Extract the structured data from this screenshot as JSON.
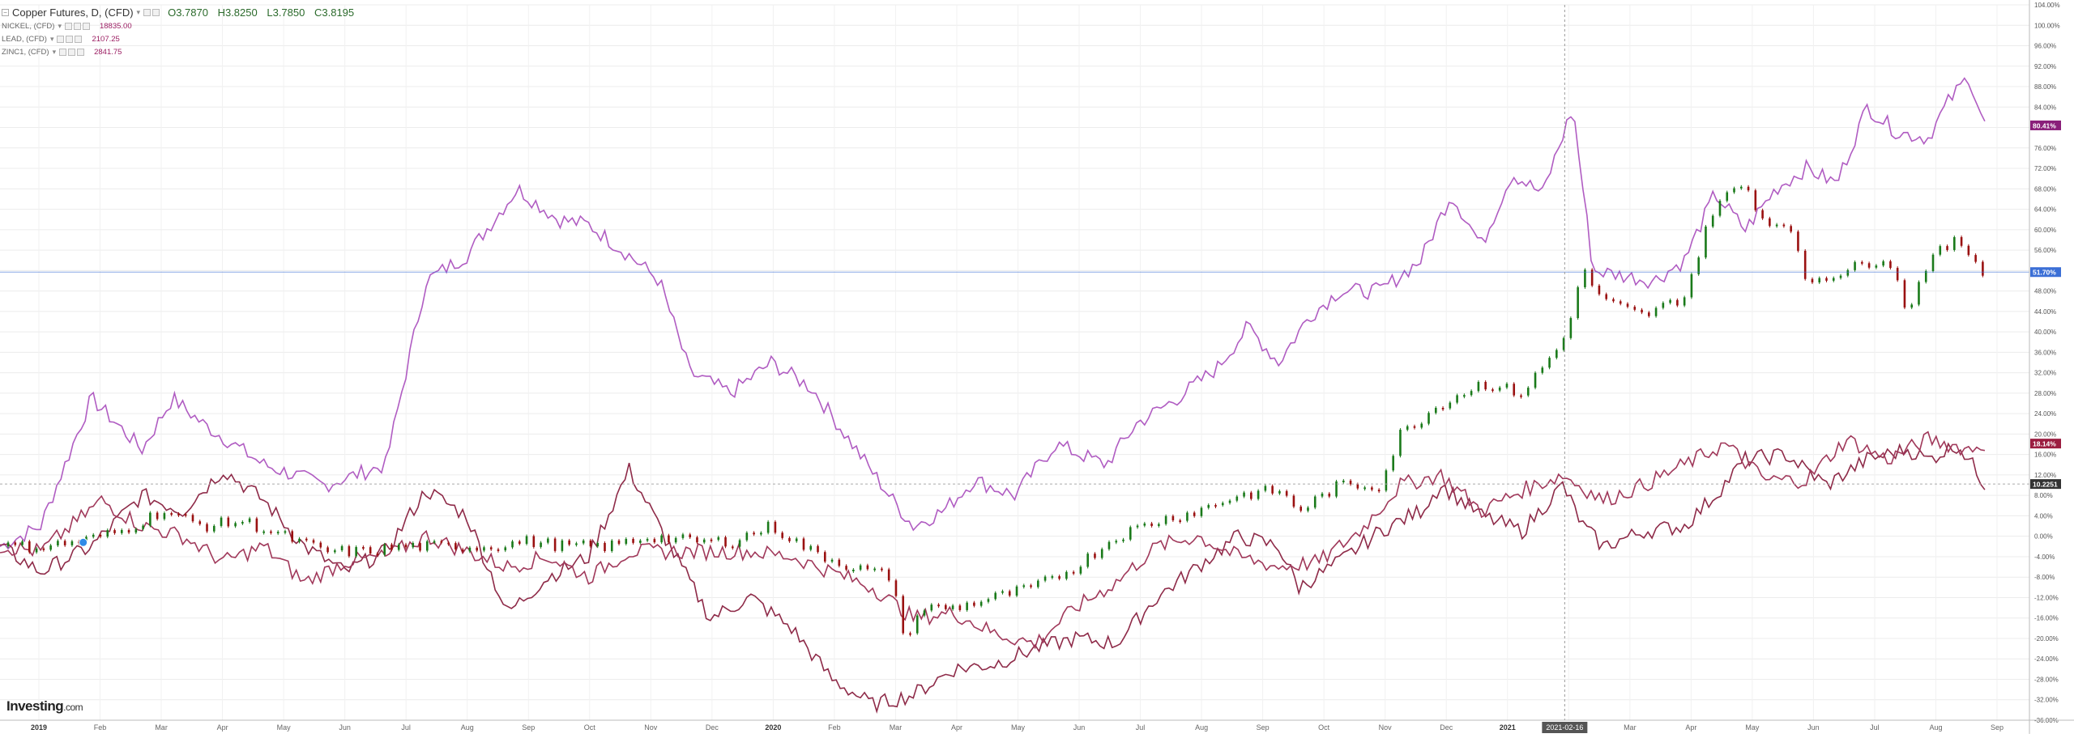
{
  "legend": {
    "main_title": "Copper Futures, D, (CFD)",
    "open": "O3.7870",
    "high": "H3.8250",
    "low": "L3.7850",
    "close": "C3.8195",
    "symbols": [
      {
        "name": "NICKEL, (CFD)",
        "value": "18835.00"
      },
      {
        "name": "LEAD, (CFD)",
        "value": "2107.25"
      },
      {
        "name": "ZINC1, (CFD)",
        "value": "2841.75"
      }
    ]
  },
  "logo": {
    "text": "Investing",
    "suffix": ".com"
  },
  "chart_data": {
    "type": "line",
    "title": "Copper Futures, D, (CFD)",
    "x_axis_labels": [
      "2019",
      "Feb",
      "Mar",
      "Apr",
      "May",
      "Jun",
      "Jul",
      "Aug",
      "Sep",
      "Oct",
      "Nov",
      "Dec",
      "2020",
      "Feb",
      "Mar",
      "Apr",
      "May",
      "Jun",
      "Jul",
      "Aug",
      "Sep",
      "Oct",
      "Nov",
      "Dec",
      "2021",
      "Feb",
      "Mar",
      "Apr",
      "May",
      "Jun",
      "Jul",
      "Aug",
      "Sep"
    ],
    "crosshair_date": "2021-02-16",
    "ylim": [
      -36,
      104
    ],
    "y_unit": "%",
    "y_ticks": [
      -36,
      -32,
      -28,
      -24,
      -20,
      -16,
      -12,
      -8,
      -4,
      0,
      4,
      8,
      12,
      16,
      20,
      24,
      28,
      32,
      36,
      40,
      44,
      48,
      52,
      56,
      60,
      64,
      68,
      72,
      76,
      80,
      84,
      88,
      92,
      96,
      100,
      104
    ],
    "y_tick_labels": [
      "-36.00%",
      "-32.00%",
      "-28.00%",
      "-24.00%",
      "-20.00%",
      "-16.00%",
      "-12.00%",
      "-8.00%",
      "-4.00%",
      "0.00%",
      "4.00%",
      "8.00%",
      "12.00%",
      "16.00%",
      "20.00%",
      "24.00%",
      "28.00%",
      "32.00%",
      "36.00%",
      "40.00%",
      "44.00%",
      "48.00%",
      "52.00%",
      "56.00%",
      "60.00%",
      "64.00%",
      "68.00%",
      "72.00%",
      "76.00%",
      "80.00%",
      "84.00%",
      "88.00%",
      "92.00%",
      "96.00%",
      "100.00%",
      "104.00%"
    ],
    "grid": true,
    "horizontal_line": {
      "value": 51.7,
      "label": "51.70%",
      "color": "#3b6fd6"
    },
    "price_tags": [
      {
        "value": 80.41,
        "label": "80.41%",
        "color": "#8a1f7a"
      },
      {
        "value": 18.14,
        "label": "18.14%",
        "color": "#9b1d40"
      },
      {
        "value": 10.225,
        "label": "10.2251",
        "color": "#333333"
      }
    ],
    "series": [
      {
        "name": "NICKEL, (CFD)",
        "kind": "line",
        "color": "#b05cc2",
        "points": [
          [
            0,
            -2
          ],
          [
            0.02,
            2
          ],
          [
            0.045,
            27
          ],
          [
            0.07,
            17
          ],
          [
            0.085,
            27
          ],
          [
            0.1,
            22
          ],
          [
            0.13,
            14
          ],
          [
            0.16,
            10
          ],
          [
            0.19,
            14
          ],
          [
            0.21,
            50
          ],
          [
            0.23,
            55
          ],
          [
            0.255,
            68
          ],
          [
            0.275,
            62
          ],
          [
            0.29,
            61
          ],
          [
            0.31,
            55
          ],
          [
            0.325,
            50
          ],
          [
            0.34,
            32
          ],
          [
            0.36,
            28
          ],
          [
            0.38,
            34
          ],
          [
            0.4,
            29
          ],
          [
            0.42,
            18
          ],
          [
            0.44,
            7
          ],
          [
            0.45,
            2
          ],
          [
            0.465,
            5
          ],
          [
            0.48,
            11
          ],
          [
            0.5,
            8
          ],
          [
            0.52,
            18
          ],
          [
            0.545,
            14
          ],
          [
            0.56,
            22
          ],
          [
            0.58,
            27
          ],
          [
            0.6,
            33
          ],
          [
            0.615,
            41
          ],
          [
            0.63,
            34
          ],
          [
            0.645,
            43
          ],
          [
            0.66,
            48
          ],
          [
            0.68,
            48
          ],
          [
            0.7,
            54
          ],
          [
            0.715,
            67
          ],
          [
            0.73,
            57
          ],
          [
            0.745,
            71
          ],
          [
            0.76,
            67
          ],
          [
            0.775,
            84
          ],
          [
            0.785,
            52
          ],
          [
            0.8,
            51
          ],
          [
            0.815,
            50
          ],
          [
            0.83,
            54
          ],
          [
            0.845,
            67
          ],
          [
            0.86,
            60
          ],
          [
            0.875,
            68
          ],
          [
            0.89,
            72
          ],
          [
            0.905,
            69
          ],
          [
            0.92,
            84
          ],
          [
            0.935,
            79
          ],
          [
            0.95,
            78
          ],
          [
            0.96,
            85
          ],
          [
            0.97,
            90
          ],
          [
            0.978,
            80.4
          ]
        ]
      },
      {
        "name": "LEAD, (CFD)",
        "kind": "line",
        "color": "#8e2a48",
        "points": [
          [
            0,
            -2
          ],
          [
            0.02,
            -7
          ],
          [
            0.045,
            -2
          ],
          [
            0.07,
            8
          ],
          [
            0.09,
            5
          ],
          [
            0.11,
            13
          ],
          [
            0.13,
            7
          ],
          [
            0.15,
            -2
          ],
          [
            0.17,
            -7
          ],
          [
            0.19,
            -3
          ],
          [
            0.21,
            9
          ],
          [
            0.23,
            4
          ],
          [
            0.25,
            -15
          ],
          [
            0.27,
            -8
          ],
          [
            0.29,
            -4
          ],
          [
            0.31,
            13
          ],
          [
            0.33,
            -2
          ],
          [
            0.35,
            -16
          ],
          [
            0.37,
            -12
          ],
          [
            0.39,
            -18
          ],
          [
            0.41,
            -28
          ],
          [
            0.43,
            -33
          ],
          [
            0.45,
            -31
          ],
          [
            0.47,
            -26
          ],
          [
            0.49,
            -25
          ],
          [
            0.51,
            -22
          ],
          [
            0.53,
            -20
          ],
          [
            0.55,
            -21
          ],
          [
            0.57,
            -12
          ],
          [
            0.59,
            -6
          ],
          [
            0.61,
            0
          ],
          [
            0.63,
            -2
          ],
          [
            0.64,
            -10
          ],
          [
            0.66,
            -5
          ],
          [
            0.68,
            1
          ],
          [
            0.7,
            5
          ],
          [
            0.71,
            10
          ],
          [
            0.73,
            4
          ],
          [
            0.75,
            1
          ],
          [
            0.77,
            10
          ],
          [
            0.78,
            2
          ],
          [
            0.79,
            -2
          ],
          [
            0.81,
            1
          ],
          [
            0.83,
            2
          ],
          [
            0.845,
            8
          ],
          [
            0.86,
            15
          ],
          [
            0.88,
            16
          ],
          [
            0.9,
            10
          ],
          [
            0.92,
            15
          ],
          [
            0.94,
            17
          ],
          [
            0.95,
            15
          ],
          [
            0.965,
            18
          ],
          [
            0.978,
            10.2
          ]
        ]
      },
      {
        "name": "ZINC1, (CFD)",
        "kind": "line",
        "color": "#a0385a",
        "points": [
          [
            0,
            -2
          ],
          [
            0.02,
            -3
          ],
          [
            0.05,
            7
          ],
          [
            0.07,
            2
          ],
          [
            0.09,
            0
          ],
          [
            0.11,
            -5
          ],
          [
            0.13,
            -2
          ],
          [
            0.15,
            -9
          ],
          [
            0.17,
            -5
          ],
          [
            0.19,
            -4
          ],
          [
            0.21,
            0
          ],
          [
            0.23,
            -3
          ],
          [
            0.25,
            -6
          ],
          [
            0.27,
            -4
          ],
          [
            0.29,
            -8
          ],
          [
            0.31,
            -3
          ],
          [
            0.33,
            -3
          ],
          [
            0.35,
            -3
          ],
          [
            0.37,
            -3
          ],
          [
            0.39,
            -4
          ],
          [
            0.41,
            -7
          ],
          [
            0.43,
            -10
          ],
          [
            0.45,
            -16
          ],
          [
            0.47,
            -15
          ],
          [
            0.49,
            -19
          ],
          [
            0.51,
            -21
          ],
          [
            0.53,
            -14
          ],
          [
            0.55,
            -9
          ],
          [
            0.57,
            -2
          ],
          [
            0.59,
            0
          ],
          [
            0.61,
            -4
          ],
          [
            0.63,
            -6
          ],
          [
            0.65,
            -5
          ],
          [
            0.67,
            1
          ],
          [
            0.69,
            10
          ],
          [
            0.71,
            12
          ],
          [
            0.73,
            5
          ],
          [
            0.75,
            9
          ],
          [
            0.77,
            12
          ],
          [
            0.79,
            7
          ],
          [
            0.81,
            10
          ],
          [
            0.83,
            14
          ],
          [
            0.85,
            18
          ],
          [
            0.87,
            11
          ],
          [
            0.89,
            11
          ],
          [
            0.91,
            19
          ],
          [
            0.93,
            15
          ],
          [
            0.95,
            19
          ],
          [
            0.97,
            17
          ],
          [
            0.978,
            18.14
          ]
        ]
      },
      {
        "name": "Copper Futures",
        "kind": "candles",
        "up_color": "#1a7a1a",
        "down_color": "#9a1111",
        "points": [
          [
            0,
            -2
          ],
          [
            0.02,
            -2
          ],
          [
            0.04,
            -1
          ],
          [
            0.06,
            1
          ],
          [
            0.08,
            5
          ],
          [
            0.1,
            2
          ],
          [
            0.12,
            3
          ],
          [
            0.14,
            0
          ],
          [
            0.16,
            -3
          ],
          [
            0.18,
            -3
          ],
          [
            0.2,
            -2
          ],
          [
            0.22,
            -2
          ],
          [
            0.24,
            -2
          ],
          [
            0.26,
            -1
          ],
          [
            0.28,
            -2
          ],
          [
            0.3,
            -2
          ],
          [
            0.32,
            0
          ],
          [
            0.34,
            -1
          ],
          [
            0.36,
            -1
          ],
          [
            0.38,
            2
          ],
          [
            0.4,
            -3
          ],
          [
            0.42,
            -6
          ],
          [
            0.44,
            -8
          ],
          [
            0.445,
            -20
          ],
          [
            0.455,
            -14
          ],
          [
            0.47,
            -14
          ],
          [
            0.49,
            -12
          ],
          [
            0.51,
            -10
          ],
          [
            0.53,
            -6
          ],
          [
            0.55,
            0
          ],
          [
            0.57,
            3
          ],
          [
            0.59,
            5
          ],
          [
            0.61,
            8
          ],
          [
            0.63,
            9
          ],
          [
            0.64,
            5
          ],
          [
            0.66,
            10
          ],
          [
            0.68,
            10
          ],
          [
            0.69,
            20
          ],
          [
            0.71,
            26
          ],
          [
            0.73,
            30
          ],
          [
            0.75,
            28
          ],
          [
            0.77,
            38
          ],
          [
            0.78,
            52
          ],
          [
            0.79,
            46
          ],
          [
            0.81,
            43
          ],
          [
            0.83,
            47
          ],
          [
            0.845,
            65
          ],
          [
            0.86,
            69
          ],
          [
            0.87,
            61
          ],
          [
            0.88,
            62
          ],
          [
            0.89,
            50
          ],
          [
            0.91,
            52
          ],
          [
            0.93,
            55
          ],
          [
            0.94,
            44
          ],
          [
            0.95,
            54
          ],
          [
            0.965,
            58
          ],
          [
            0.978,
            51.7
          ]
        ]
      }
    ]
  }
}
